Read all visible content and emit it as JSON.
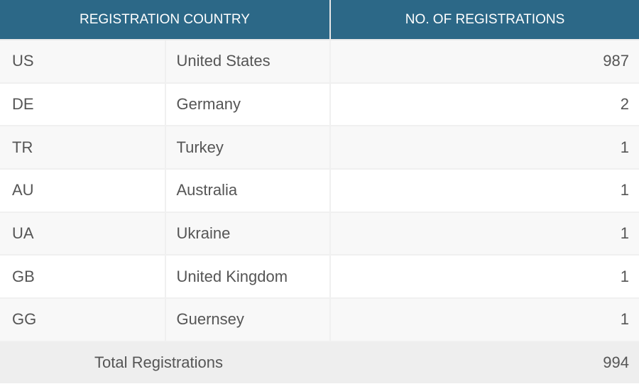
{
  "header": {
    "country": "REGISTRATION COUNTRY",
    "count": "NO. OF REGISTRATIONS"
  },
  "rows": [
    {
      "code": "US",
      "name": "United States",
      "count": "987"
    },
    {
      "code": "DE",
      "name": "Germany",
      "count": "2"
    },
    {
      "code": "TR",
      "name": "Turkey",
      "count": "1"
    },
    {
      "code": "AU",
      "name": "Australia",
      "count": "1"
    },
    {
      "code": "UA",
      "name": "Ukraine",
      "count": "1"
    },
    {
      "code": "GB",
      "name": "United Kingdom",
      "count": "1"
    },
    {
      "code": "GG",
      "name": "Guernsey",
      "count": "1"
    }
  ],
  "total": {
    "label": "Total Registrations",
    "value": "994"
  },
  "colors": {
    "header_bg": "#2c6887"
  }
}
